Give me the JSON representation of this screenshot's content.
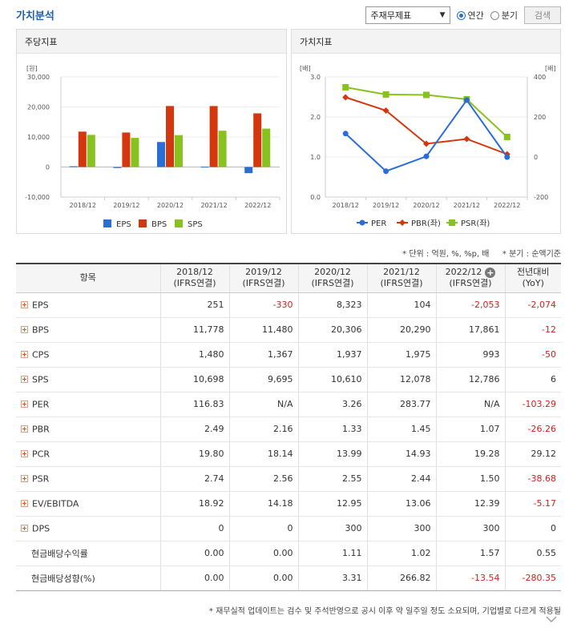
{
  "header": {
    "title": "가치분석",
    "select_value": "주재무제표",
    "radio_annual": "연간",
    "radio_quarter": "분기",
    "search_label": "검색"
  },
  "chart_left": {
    "panel_title": "주당지표",
    "chart_data": {
      "type": "bar",
      "ylabel": "[원]",
      "categories": [
        "2018/12",
        "2019/12",
        "2020/12",
        "2021/12",
        "2022/12"
      ],
      "ylim": [
        -10000,
        30000
      ],
      "yticks": [
        "30,000",
        "20,000",
        "10,000",
        "0",
        "-10,000"
      ],
      "series": [
        {
          "name": "EPS",
          "color": "#2a6dd4",
          "values": [
            251,
            -330,
            8323,
            104,
            -2053
          ]
        },
        {
          "name": "BPS",
          "color": "#d4360d",
          "values": [
            11778,
            11480,
            20306,
            20290,
            17861
          ]
        },
        {
          "name": "SPS",
          "color": "#88c21e",
          "values": [
            10698,
            9695,
            10610,
            12078,
            12786
          ]
        }
      ]
    }
  },
  "chart_right": {
    "panel_title": "가치지표",
    "chart_data": {
      "type": "line",
      "ylabel_left": "[배]",
      "ylabel_right": "[배]",
      "categories": [
        "2018/12",
        "2019/12",
        "2020/12",
        "2021/12",
        "2022/12"
      ],
      "ylim_left": [
        0,
        3
      ],
      "ylim_right": [
        -200,
        400
      ],
      "yticks_left": [
        "3.0",
        "2.0",
        "1.0",
        "0.0"
      ],
      "yticks_right": [
        "400",
        "200",
        "0",
        "-200"
      ],
      "series": [
        {
          "name": "PER",
          "axis": "right",
          "color": "#2a6dd4",
          "marker": "circle",
          "values": [
            116.83,
            -71,
            3.26,
            283.77,
            -0.5
          ]
        },
        {
          "name": "PBR(좌)",
          "axis": "left",
          "color": "#d4360d",
          "marker": "diamond",
          "values": [
            2.49,
            2.16,
            1.33,
            1.45,
            1.07
          ]
        },
        {
          "name": "PSR(좌)",
          "axis": "left",
          "color": "#88c21e",
          "marker": "square",
          "values": [
            2.74,
            2.56,
            2.55,
            2.44,
            1.5
          ]
        }
      ]
    }
  },
  "meta": {
    "unit_note": "* 단위 : 억원, %, %p, 배",
    "quarter_note": "* 분기 : 순액기준"
  },
  "table": {
    "headers": [
      {
        "l1": "항목",
        "l2": ""
      },
      {
        "l1": "2018/12",
        "l2": "(IFRS연결)"
      },
      {
        "l1": "2019/12",
        "l2": "(IFRS연결)"
      },
      {
        "l1": "2020/12",
        "l2": "(IFRS연결)"
      },
      {
        "l1": "2021/12",
        "l2": "(IFRS연결)"
      },
      {
        "l1": "2022/12",
        "l2": "(IFRS연결)"
      },
      {
        "l1": "전년대비",
        "l2": "(YoY)"
      }
    ],
    "rows": [
      {
        "label": "EPS",
        "expand": true,
        "cells": [
          "251",
          "-330",
          "8,323",
          "104",
          "-2,053",
          "-2,074"
        ]
      },
      {
        "label": "BPS",
        "expand": true,
        "cells": [
          "11,778",
          "11,480",
          "20,306",
          "20,290",
          "17,861",
          "-12"
        ]
      },
      {
        "label": "CPS",
        "expand": true,
        "cells": [
          "1,480",
          "1,367",
          "1,937",
          "1,975",
          "993",
          "-50"
        ]
      },
      {
        "label": "SPS",
        "expand": true,
        "cells": [
          "10,698",
          "9,695",
          "10,610",
          "12,078",
          "12,786",
          "6"
        ]
      },
      {
        "label": "PER",
        "expand": true,
        "cells": [
          "116.83",
          "N/A",
          "3.26",
          "283.77",
          "N/A",
          "-103.29"
        ]
      },
      {
        "label": "PBR",
        "expand": true,
        "cells": [
          "2.49",
          "2.16",
          "1.33",
          "1.45",
          "1.07",
          "-26.26"
        ]
      },
      {
        "label": "PCR",
        "expand": true,
        "cells": [
          "19.80",
          "18.14",
          "13.99",
          "14.93",
          "19.28",
          "29.12"
        ]
      },
      {
        "label": "PSR",
        "expand": true,
        "cells": [
          "2.74",
          "2.56",
          "2.55",
          "2.44",
          "1.50",
          "-38.68"
        ]
      },
      {
        "label": "EV/EBITDA",
        "expand": true,
        "cells": [
          "18.92",
          "14.18",
          "12.95",
          "13.06",
          "12.39",
          "-5.17"
        ]
      },
      {
        "label": "DPS",
        "expand": true,
        "cells": [
          "0",
          "0",
          "300",
          "300",
          "300",
          "0"
        ]
      },
      {
        "label": "현금배당수익률",
        "expand": false,
        "cells": [
          "0.00",
          "0.00",
          "1.11",
          "1.02",
          "1.57",
          "0.55"
        ]
      },
      {
        "label": "현금배당성향(%)",
        "expand": false,
        "cells": [
          "0.00",
          "0.00",
          "3.31",
          "266.82",
          "-13.54",
          "-280.35"
        ]
      }
    ]
  },
  "footnote": "* 재무실적 업데이트는 검수 및 주석반영으로 공시 이후 약 일주일 정도 소요되며, 기업별로 다르게 적용될",
  "colors": {
    "accent": "#1c5fb4",
    "negative": "#d42020"
  }
}
